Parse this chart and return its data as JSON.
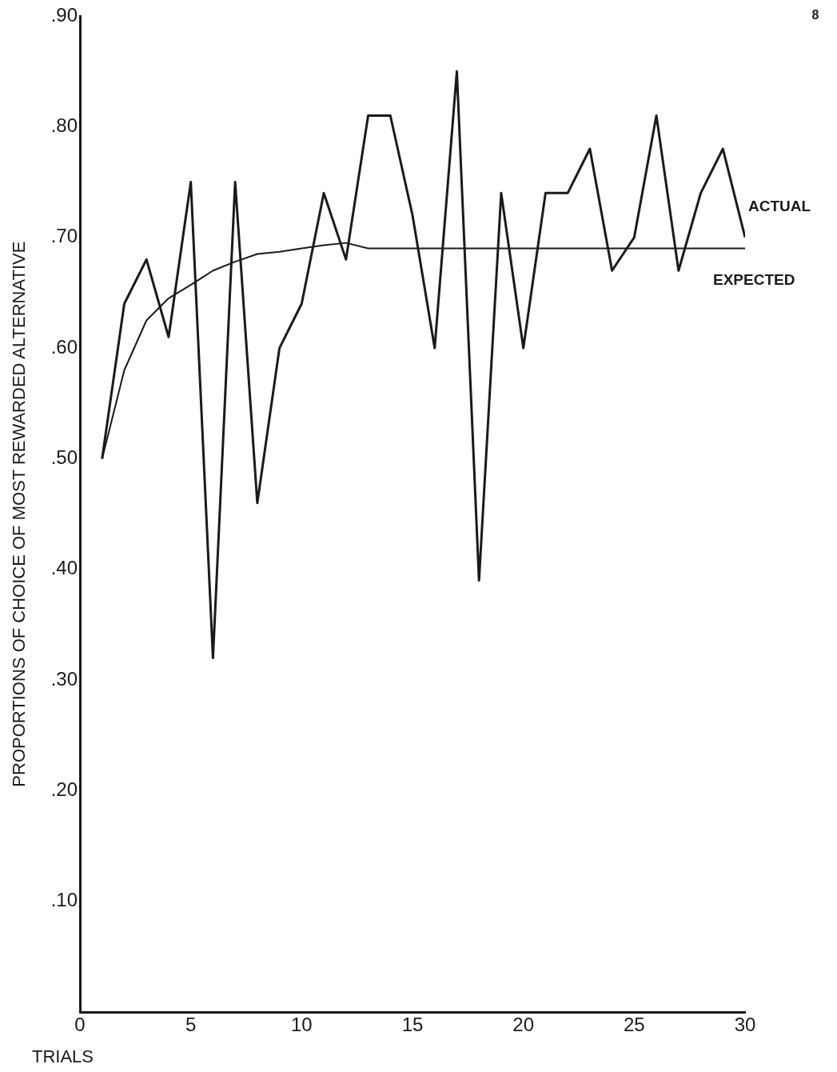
{
  "chart_data": {
    "type": "line",
    "xlabel": "TRIALS",
    "ylabel": "PROPORTIONS OF CHOICE OF MOST REWARDED ALTERNATIVE",
    "annotations": [
      "8"
    ],
    "x": [
      1,
      2,
      3,
      4,
      5,
      6,
      7,
      8,
      9,
      10,
      11,
      12,
      13,
      14,
      15,
      16,
      17,
      18,
      19,
      20,
      21,
      22,
      23,
      24,
      25,
      26,
      27,
      28,
      29,
      30
    ],
    "series": [
      {
        "name": "ACTUAL",
        "color": "#1a1a1a",
        "values": [
          0.5,
          0.64,
          0.68,
          0.61,
          0.75,
          0.32,
          0.75,
          0.46,
          0.6,
          0.64,
          0.74,
          0.68,
          0.81,
          0.81,
          0.72,
          0.6,
          0.85,
          0.39,
          0.74,
          0.6,
          0.74,
          0.74,
          0.78,
          0.67,
          0.7,
          0.81,
          0.67,
          0.74,
          0.78,
          0.7
        ]
      },
      {
        "name": "EXPECTED",
        "color": "#1a1a1a",
        "values": [
          0.5,
          0.58,
          0.625,
          0.645,
          0.657,
          0.67,
          0.678,
          0.685,
          0.687,
          0.69,
          0.693,
          0.695,
          0.69,
          0.69,
          0.69,
          0.69,
          0.69,
          0.69,
          0.69,
          0.69,
          0.69,
          0.69,
          0.69,
          0.69,
          0.69,
          0.69,
          0.69,
          0.69,
          0.69,
          0.69
        ]
      }
    ],
    "xlim": [
      0,
      30
    ],
    "xticks": [
      0,
      5,
      10,
      15,
      20,
      25,
      30
    ],
    "ylim": [
      0,
      0.9
    ],
    "yticks": [
      {
        "value": 0.1,
        "label": ".10"
      },
      {
        "value": 0.2,
        "label": ".20"
      },
      {
        "value": 0.3,
        "label": ".30"
      },
      {
        "value": 0.4,
        "label": ".40"
      },
      {
        "value": 0.5,
        "label": ".50"
      },
      {
        "value": 0.6,
        "label": ".60"
      },
      {
        "value": 0.7,
        "label": ".70"
      },
      {
        "value": 0.8,
        "label": ".80"
      },
      {
        "value": 0.9,
        "label": ".90"
      }
    ],
    "grid": false,
    "legend": false,
    "marker": "none",
    "line_style": "solid"
  }
}
